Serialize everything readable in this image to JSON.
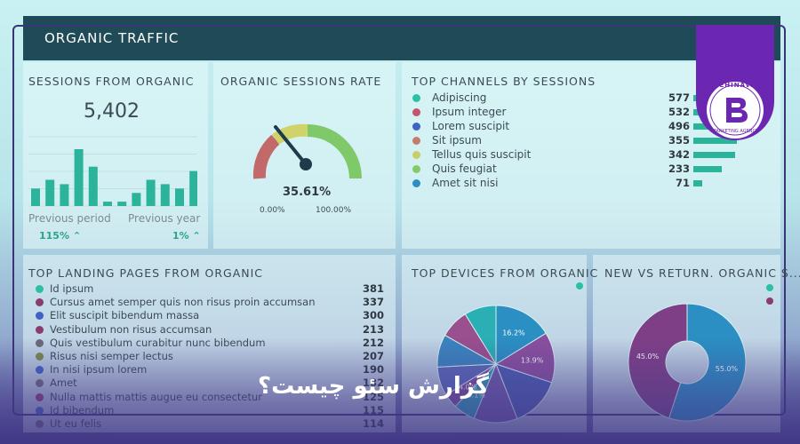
{
  "header": {
    "title": "ORGANIC TRAFFIC"
  },
  "sessions": {
    "title": "SESSIONS FROM ORGANIC",
    "value": "5,402",
    "bars": [
      4,
      6,
      5,
      13,
      9,
      1,
      1,
      3,
      6,
      5,
      4,
      8
    ],
    "prev_period_label": "Previous period",
    "prev_year_label": "Previous year",
    "prev_period_pct": "115%",
    "prev_year_pct": "1%"
  },
  "rate": {
    "title": "ORGANIC SESSIONS RATE",
    "value": "35.61%",
    "fraction": 0.3561,
    "min_label": "0.00%",
    "max_label": "100.00%"
  },
  "channels": {
    "title": "TOP CHANNELS BY SESSIONS",
    "items": [
      {
        "label": "Adipiscing",
        "value": "577",
        "num": 577,
        "color": "#2bbfa4"
      },
      {
        "label": "Ipsum integer",
        "value": "532",
        "num": 532,
        "color": "#c4566c"
      },
      {
        "label": "Lorem suscipit",
        "value": "496",
        "num": 496,
        "color": "#3f62c4"
      },
      {
        "label": "Sit ipsum",
        "value": "355",
        "num": 355,
        "color": "#c77c6a"
      },
      {
        "label": "Tellus quis suscipit",
        "value": "342",
        "num": 342,
        "color": "#c9cc67"
      },
      {
        "label": "Quis feugiat",
        "value": "233",
        "num": 233,
        "color": "#86c96a"
      },
      {
        "label": "Amet sit nisi",
        "value": "71",
        "num": 71,
        "color": "#2b8fc4"
      }
    ]
  },
  "landing": {
    "title": "TOP LANDING PAGES FROM ORGANIC",
    "items": [
      {
        "label": "Id ipsum",
        "value": "381",
        "color": "#2bbfa4"
      },
      {
        "label": "Cursus amet semper quis non risus proin accumsan",
        "value": "337",
        "color": "#8a3c6e"
      },
      {
        "label": "Elit suscipit bibendum massa",
        "value": "300",
        "color": "#3f62c4"
      },
      {
        "label": "Vestibulum non risus accumsan",
        "value": "213",
        "color": "#8a3c6e"
      },
      {
        "label": "Quis vestibulum curabitur nunc bibendum",
        "value": "212",
        "color": "#6a6a7a"
      },
      {
        "label": "Risus nisi semper lectus",
        "value": "207",
        "color": "#7a8a4a"
      },
      {
        "label": "In nisi ipsum lorem",
        "value": "190",
        "color": "#3f62c4"
      },
      {
        "label": "Amet",
        "value": "182",
        "color": "#6a6a7a"
      },
      {
        "label": "Nulla mattis mattis augue eu consectetur",
        "value": "125",
        "color": "#8a3c6e"
      },
      {
        "label": "Id bibendum",
        "value": "115",
        "color": "#3f62c4"
      },
      {
        "label": "Ut eu felis",
        "value": "114",
        "color": "#6a6a7a"
      }
    ]
  },
  "devices": {
    "title": "TOP DEVICES FROM ORGANIC",
    "slices": [
      {
        "label": "16.2%",
        "value": 16.2,
        "color": "#2b8fc4"
      },
      {
        "label": "13.9%",
        "value": 13.9,
        "color": "#8a4f9e"
      },
      {
        "label": "",
        "value": 14,
        "color": "#4a5cb0"
      },
      {
        "label": "",
        "value": 12,
        "color": "#6e5aa8"
      },
      {
        "label": "6.1%",
        "value": 6.1,
        "color": "#2a9fb6"
      },
      {
        "label": "4.0%",
        "value": 4.0,
        "color": "#7a4e9a"
      },
      {
        "label": "",
        "value": 8,
        "color": "#5a6ab8"
      },
      {
        "label": "",
        "value": 9,
        "color": "#3a84bf"
      },
      {
        "label": "",
        "value": 8,
        "color": "#9a4f8e"
      },
      {
        "label": "",
        "value": 8.8,
        "color": "#2ab0b4"
      }
    ]
  },
  "newret": {
    "title": "NEW VS RETURN. ORGANIC S...",
    "slices": [
      {
        "label": "55.0%",
        "value": 55,
        "color": "#2b8fc4"
      },
      {
        "label": "45.0%",
        "value": 45,
        "color": "#7e3f86"
      }
    ]
  },
  "logo": {
    "brand": "BEHINAVA",
    "tagline": "MARKETING AGENCY"
  },
  "overlay_title": "گزارش سئو چیست؟"
}
